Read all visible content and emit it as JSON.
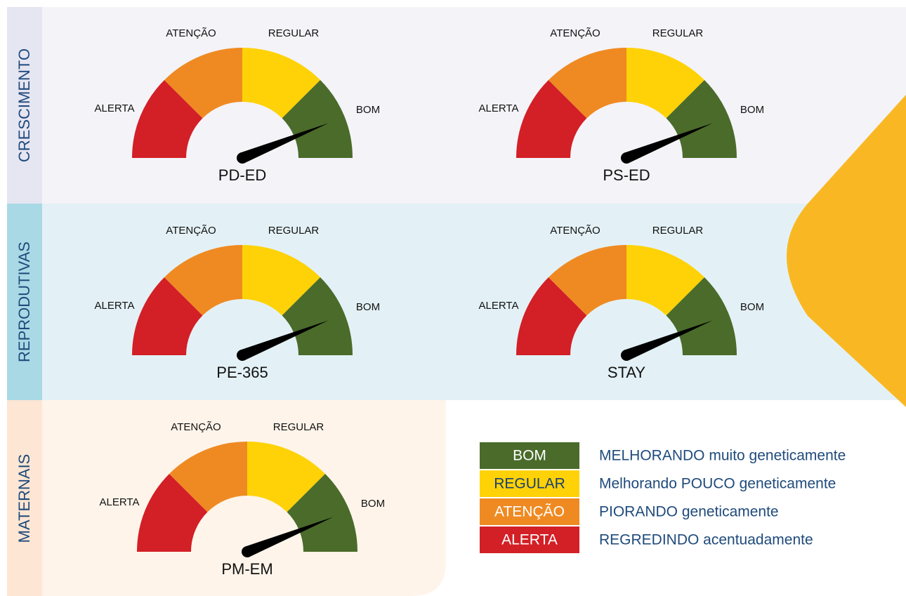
{
  "zones": [
    "ALERTA",
    "ATENÇÃO",
    "REGULAR",
    "BOM"
  ],
  "sections": [
    {
      "name": "CRESCIMENTO",
      "gauges": [
        "PD-ED",
        "PS-ED"
      ]
    },
    {
      "name": "REPRODUTIVAS",
      "gauges": [
        "PE-365",
        "STAY"
      ]
    },
    {
      "name": "MATERNAIS",
      "gauges": [
        "PM-EM"
      ]
    }
  ],
  "legend": [
    {
      "label": "BOM",
      "description": "MELHORANDO muito geneticamente"
    },
    {
      "label": "REGULAR",
      "description": "Melhorando POUCO geneticamente"
    },
    {
      "label": "ATENÇÃO",
      "description": "PIORANDO geneticamente"
    },
    {
      "label": "ALERTA",
      "description": "REGREDINDO acentuadamente"
    }
  ]
}
